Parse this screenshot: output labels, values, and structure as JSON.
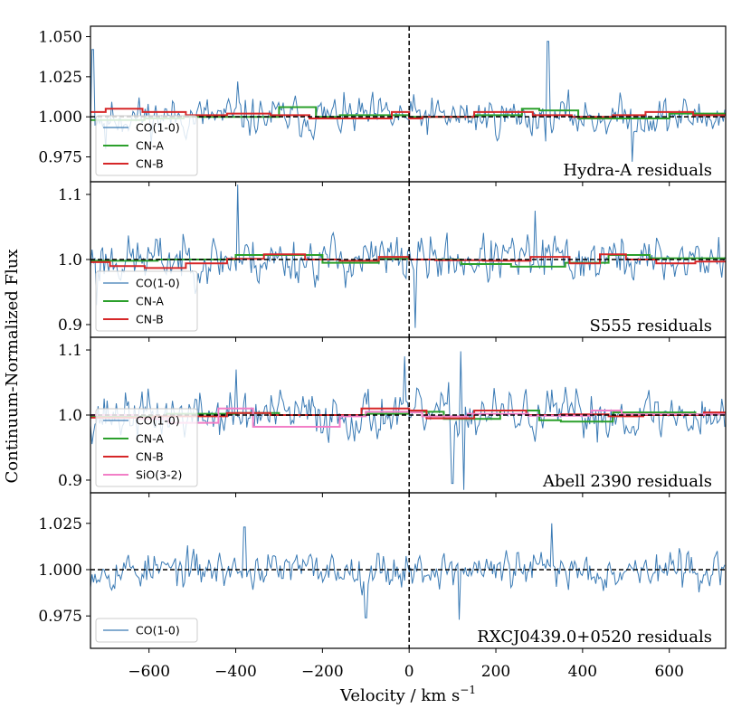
{
  "chart_data": {
    "type": "line",
    "xlabel": "Velocity / km s",
    "xlabel_sup": "−1",
    "ylabel": "Continuum-Normalized Flux",
    "xlim": [
      -735,
      730
    ],
    "xticks": [
      -600,
      -400,
      -200,
      0,
      200,
      400,
      600
    ],
    "xtick_labels": [
      "−600",
      "−400",
      "−200",
      "0",
      "200",
      "400",
      "600"
    ],
    "reference_lines": {
      "x": 0,
      "y": 1.0,
      "style": "dashed"
    },
    "colors": {
      "CO(1-0)": "#3b7bb5",
      "CN-A": "#2ca02c",
      "CN-B": "#d62728",
      "SiO(3-2)": "#f27fc7"
    },
    "panels": [
      {
        "label": "Hydra-A residuals",
        "ylim": [
          0.9595,
          1.0565
        ],
        "yticks": [
          0.975,
          1.0,
          1.025,
          1.05
        ],
        "ytick_labels": [
          "0.975",
          "1.000",
          "1.025",
          "1.050"
        ],
        "legend": [
          "CO(1-0)",
          "CN-A",
          "CN-B"
        ],
        "noise": {
          "amplitude": 0.01,
          "seed": 11
        },
        "spikes": [
          [
            -730,
            1.042
          ],
          [
            -395,
            1.022
          ],
          [
            320,
            1.047
          ],
          [
            -700,
            0.98
          ],
          [
            515,
            0.972
          ]
        ],
        "series": [
          {
            "name": "CN-A",
            "edges": [
              -735,
              -610,
              -520,
              -300,
              -215,
              -160,
              0,
              150,
              260,
              300,
              390,
              475,
              600,
              730
            ],
            "values": [
              0.998,
              0.999,
              1.0,
              1.006,
              1.0,
              1.001,
              1.0,
              1.001,
              1.005,
              1.004,
              0.999,
              0.999,
              1.002
            ]
          },
          {
            "name": "CN-B",
            "edges": [
              -735,
              -700,
              -615,
              -515,
              -420,
              -320,
              -230,
              -150,
              -40,
              0,
              30,
              150,
              285,
              375,
              470,
              545,
              655,
              730
            ],
            "values": [
              1.003,
              1.005,
              1.003,
              1.001,
              1.002,
              1.001,
              0.999,
              0.999,
              1.003,
              0.999,
              1.0,
              1.003,
              1.001,
              1.0,
              1.001,
              1.003,
              1.001
            ]
          }
        ]
      },
      {
        "label": "S555 residuals",
        "ylim": [
          0.8805,
          1.1195
        ],
        "yticks": [
          0.9,
          1.0,
          1.1
        ],
        "ytick_labels": [
          "0.9",
          "1.0",
          "1.1"
        ],
        "legend": [
          "CO(1-0)",
          "CN-A",
          "CN-B"
        ],
        "noise": {
          "amplitude": 0.03,
          "seed": 23
        },
        "spikes": [
          [
            -395,
            1.115
          ],
          [
            15,
            0.895
          ],
          [
            -720,
            0.93
          ],
          [
            290,
            1.075
          ]
        ],
        "series": [
          {
            "name": "CN-A",
            "edges": [
              -735,
              -580,
              -400,
              -200,
              -70,
              0,
              120,
              235,
              360,
              460,
              555,
              730
            ],
            "values": [
              0.998,
              1.0,
              1.007,
              0.995,
              1.001,
              1.0,
              0.993,
              0.989,
              0.995,
              1.007,
              1.002
            ]
          },
          {
            "name": "CN-B",
            "edges": [
              -735,
              -690,
              -610,
              -515,
              -420,
              -335,
              -240,
              -160,
              -70,
              0,
              60,
              170,
              280,
              370,
              440,
              500,
              570,
              660,
              730
            ],
            "values": [
              0.996,
              0.99,
              0.987,
              0.994,
              1.001,
              1.008,
              1.0,
              0.998,
              1.004,
              1.0,
              0.999,
              0.998,
              1.004,
              0.994,
              1.008,
              1.0,
              0.994,
              0.997
            ]
          }
        ]
      },
      {
        "label": "Abell 2390 residuals",
        "ylim": [
          0.8805,
          1.1195
        ],
        "yticks": [
          0.9,
          1.0,
          1.1
        ],
        "ytick_labels": [
          "0.9",
          "1.0",
          "1.1"
        ],
        "legend": [
          "CO(1-0)",
          "CN-A",
          "CN-B",
          "SiO(3-2)"
        ],
        "noise": {
          "amplitude": 0.03,
          "seed": 37
        },
        "spikes": [
          [
            120,
            1.098
          ],
          [
            125,
            0.885
          ],
          [
            -10,
            1.09
          ],
          [
            -400,
            1.07
          ],
          [
            100,
            0.895
          ]
        ],
        "series": [
          {
            "name": "CN-A",
            "edges": [
              -735,
              -560,
              -400,
              -300,
              -100,
              0,
              80,
              210,
              300,
              350,
              470,
              660,
              730
            ],
            "values": [
              0.998,
              1.002,
              1.003,
              1.0,
              1.002,
              1.005,
              0.994,
              1.007,
              0.992,
              0.99,
              1.004,
              1.001
            ]
          },
          {
            "name": "CN-B",
            "edges": [
              -735,
              -590,
              -420,
              -320,
              -110,
              0,
              40,
              150,
              270,
              350,
              460,
              540,
              680,
              730
            ],
            "values": [
              0.996,
              0.998,
              1.003,
              1.0,
              1.01,
              1.007,
              0.995,
              1.007,
              1.0,
              1.001,
              0.998,
              1.0,
              1.004
            ]
          },
          {
            "name": "SiO(3-2)",
            "edges": [
              -735,
              -625,
              -555,
              -440,
              -360,
              -160,
              -100,
              0,
              30,
              135,
              275,
              420,
              490,
              730
            ],
            "values": [
              1.0,
              0.994,
              0.988,
              1.01,
              0.982,
              0.998,
              1.005,
              1.004,
              0.998,
              1.002,
              0.999,
              1.007,
              1.001
            ]
          }
        ]
      },
      {
        "label": "RXCJ0439.0+0520 residuals",
        "ylim": [
          0.9575,
          1.0415
        ],
        "yticks": [
          0.975,
          1.0,
          1.025
        ],
        "ytick_labels": [
          "0.975",
          "1.000",
          "1.025"
        ],
        "legend": [
          "CO(1-0)"
        ],
        "noise": {
          "amplitude": 0.008,
          "seed": 53
        },
        "spikes": [
          [
            -100,
            0.974
          ],
          [
            330,
            1.025
          ],
          [
            115,
            0.973
          ],
          [
            -380,
            1.023
          ]
        ],
        "series": []
      }
    ]
  }
}
